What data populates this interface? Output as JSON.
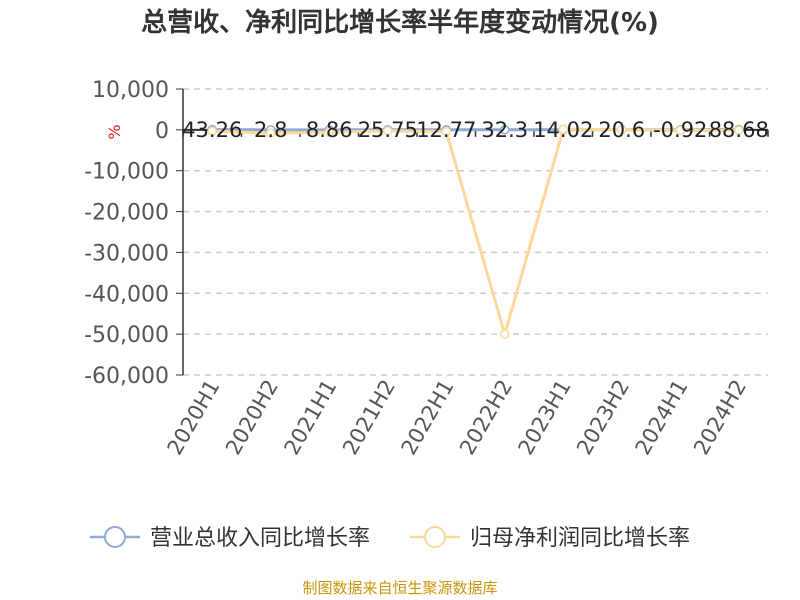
{
  "chart_data": {
    "type": "line",
    "title": "总营收、净利同比增长率半年度变动情况(%)",
    "ylabel": "%",
    "xlabel": "",
    "categories": [
      "2020H1",
      "2020H2",
      "2021H1",
      "2021H2",
      "2022H1",
      "2022H2",
      "2023H1",
      "2023H2",
      "2024H1",
      "2024H2"
    ],
    "ylim": [
      -60000,
      10000
    ],
    "yticks": [
      10000,
      0,
      -10000,
      -20000,
      -30000,
      -40000,
      -50000,
      -60000
    ],
    "ytick_labels": [
      "10,000",
      "0",
      "-10,000",
      "-20,000",
      "-30,000",
      "-40,000",
      "-50,000",
      "-60,000"
    ],
    "grid": true,
    "legend_position": "bottom",
    "series": [
      {
        "name": "营业总收入同比增长率",
        "color": "#8fa9d9",
        "values": [
          43.26,
          2.8,
          8.86,
          25.75,
          12.77,
          32.3,
          14.02,
          20.6,
          -0.92,
          88.68
        ],
        "data_labels": [
          "43.26",
          "2.8",
          "8.86",
          "25.75",
          "12.77",
          "32.3",
          "14.02",
          "20.6",
          "-0.92",
          "88.68"
        ]
      },
      {
        "name": "归母净利润同比增长率",
        "color": "#fcd899",
        "values": [
          -300,
          -800,
          -600,
          -250,
          -400,
          -50000,
          150,
          0,
          -150,
          -100
        ],
        "data_labels": []
      }
    ]
  },
  "source": "制图数据来自恒生聚源数据库"
}
